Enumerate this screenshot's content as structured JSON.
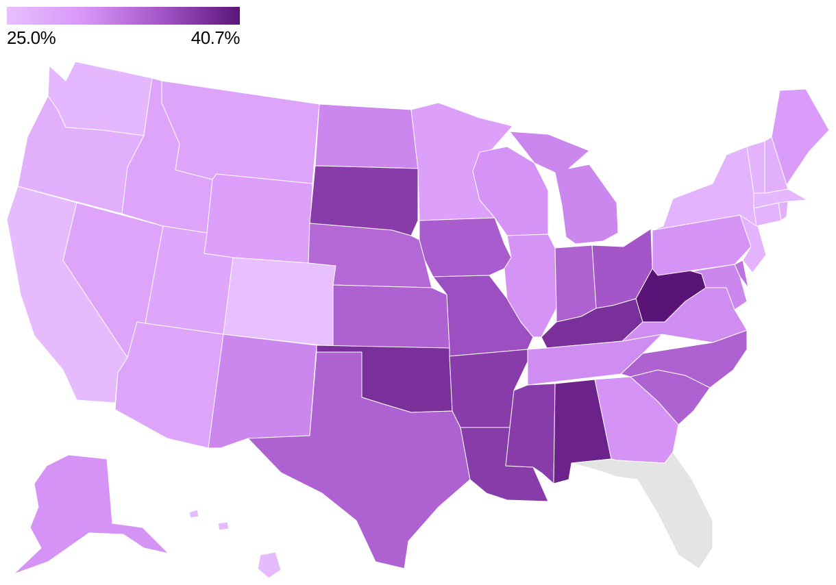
{
  "legend": {
    "min_label": "25.0%",
    "max_label": "40.7%",
    "min_value": 25.0,
    "max_value": 40.7,
    "color_stops": [
      "#e8bfff",
      "#d896f8",
      "#a456c9",
      "#5a1478"
    ]
  },
  "no_data_color": "#e4e4e4",
  "map_data": {
    "type": "choropleth",
    "regions": [
      {
        "state": "Washington",
        "value": 26.0
      },
      {
        "state": "Oregon",
        "value": 27.0
      },
      {
        "state": "California",
        "value": 25.5
      },
      {
        "state": "Nevada",
        "value": 28.5
      },
      {
        "state": "Idaho",
        "value": 28.5
      },
      {
        "state": "Montana",
        "value": 28.5
      },
      {
        "state": "Wyoming",
        "value": 29.0
      },
      {
        "state": "Utah",
        "value": 28.0
      },
      {
        "state": "Arizona",
        "value": 28.5
      },
      {
        "state": "Colorado",
        "value": 25.0
      },
      {
        "state": "New Mexico",
        "value": 31.5
      },
      {
        "state": "North Dakota",
        "value": 31.5
      },
      {
        "state": "South Dakota",
        "value": 37.5
      },
      {
        "state": "Nebraska",
        "value": 34.0
      },
      {
        "state": "Kansas",
        "value": 34.5
      },
      {
        "state": "Oklahoma",
        "value": 38.5
      },
      {
        "state": "Texas",
        "value": 34.5
      },
      {
        "state": "Minnesota",
        "value": 29.0
      },
      {
        "state": "Iowa",
        "value": 35.0
      },
      {
        "state": "Missouri",
        "value": 36.0
      },
      {
        "state": "Arkansas",
        "value": 37.5
      },
      {
        "state": "Louisiana",
        "value": 37.5
      },
      {
        "state": "Wisconsin",
        "value": 30.5
      },
      {
        "state": "Illinois",
        "value": 30.5
      },
      {
        "state": "Michigan",
        "value": 31.5
      },
      {
        "state": "Indiana",
        "value": 34.5
      },
      {
        "state": "Ohio",
        "value": 35.5
      },
      {
        "state": "Kentucky",
        "value": 38.5
      },
      {
        "state": "Tennessee",
        "value": 31.0
      },
      {
        "state": "Mississippi",
        "value": 37.5
      },
      {
        "state": "Alabama",
        "value": 39.5
      },
      {
        "state": "Georgia",
        "value": 30.5
      },
      {
        "state": "South Carolina",
        "value": 34.5
      },
      {
        "state": "North Carolina",
        "value": 34.5
      },
      {
        "state": "Virginia",
        "value": 31.0
      },
      {
        "state": "West Virginia",
        "value": 40.7
      },
      {
        "state": "Pennsylvania",
        "value": 30.5
      },
      {
        "state": "New York",
        "value": 26.5
      },
      {
        "state": "Maine",
        "value": 29.5
      },
      {
        "state": "New Hampshire",
        "value": 27.0
      },
      {
        "state": "Vermont",
        "value": 26.5
      },
      {
        "state": "Massachusetts",
        "value": 26.0
      },
      {
        "state": "Rhode Island",
        "value": 27.0
      },
      {
        "state": "Connecticut",
        "value": 26.5
      },
      {
        "state": "New Jersey",
        "value": 26.5
      },
      {
        "state": "Delaware",
        "value": 33.0
      },
      {
        "state": "Maryland",
        "value": 31.5
      },
      {
        "state": "Alaska",
        "value": 30.5
      },
      {
        "state": "Hawaii",
        "value": 25.5
      },
      {
        "state": "Florida",
        "value": null
      }
    ]
  }
}
